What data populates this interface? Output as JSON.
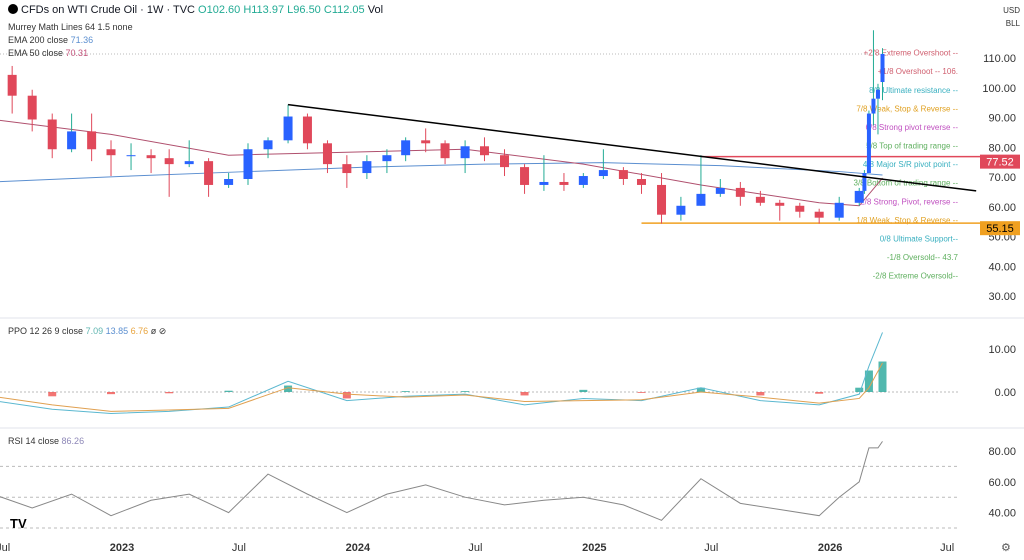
{
  "header": {
    "symbol_title": "CFDs on WTI Crude Oil · 1W · TVC",
    "ohlc": {
      "o": "O102.60",
      "h": "H113.97",
      "l": "L96.50",
      "c": "C112.05"
    },
    "vol": "Vol",
    "currency": "USD",
    "unit": "BLL"
  },
  "legend": {
    "murrey": "Murrey Math Lines 64 1.5 none",
    "ema200_label": "EMA 200 close",
    "ema200_value": "71.36",
    "ema50_label": "EMA 50 close",
    "ema50_value": "70.31",
    "ppo_label": "PPO 12 26 9 close",
    "ppo_values": [
      "7.09",
      "13.85",
      "6.76"
    ],
    "rsi_label": "RSI 14 close",
    "rsi_value": "86.26"
  },
  "colors": {
    "up": "#2962ff",
    "down": "#e0485a",
    "ema200": "#5b8fd0",
    "ema50": "#b0506e",
    "trendline": "#000000",
    "resistance": "#e0485a",
    "support": "#f0a020"
  },
  "chart_data": [
    {
      "type": "candlestick",
      "title": "CFDs on WTI Crude Oil",
      "ylim": [
        25,
        122
      ],
      "yticks": [
        "30.00",
        "40.00",
        "50.00",
        "60.00",
        "70.00",
        "80.00",
        "90.00",
        "100.00",
        "110.00"
      ],
      "xticks": [
        "Jul",
        "2023",
        "Jul",
        "2024",
        "Jul",
        "2025",
        "Jul",
        "2026",
        "Jul"
      ],
      "ohlc": [
        [
          "2022-06",
          110,
          114,
          100,
          105
        ],
        [
          "2022-07",
          105,
          108,
          92,
          98
        ],
        [
          "2022-08",
          98,
          100,
          86,
          90
        ],
        [
          "2022-09",
          90,
          92,
          77,
          80
        ],
        [
          "2022-10",
          80,
          92,
          79,
          86
        ],
        [
          "2022-11",
          86,
          92,
          76,
          80
        ],
        [
          "2022-12",
          80,
          83,
          71,
          78
        ],
        [
          "2023-01",
          78,
          82,
          73,
          78
        ],
        [
          "2023-02",
          78,
          80,
          72,
          77
        ],
        [
          "2023-03",
          77,
          80,
          64,
          75
        ],
        [
          "2023-04",
          75,
          83,
          74,
          76
        ],
        [
          "2023-05",
          76,
          77,
          64,
          68
        ],
        [
          "2023-06",
          68,
          72,
          67,
          70
        ],
        [
          "2023-07",
          70,
          82,
          68,
          80
        ],
        [
          "2023-08",
          80,
          84,
          77,
          83
        ],
        [
          "2023-09",
          83,
          95,
          82,
          91
        ],
        [
          "2023-10",
          91,
          92,
          80,
          82
        ],
        [
          "2023-11",
          82,
          83,
          72,
          75
        ],
        [
          "2023-12",
          75,
          78,
          67,
          72
        ],
        [
          "2024-01",
          72,
          78,
          70,
          76
        ],
        [
          "2024-02",
          76,
          80,
          72,
          78
        ],
        [
          "2024-03",
          78,
          84,
          76,
          83
        ],
        [
          "2024-04",
          83,
          87,
          79,
          82
        ],
        [
          "2024-05",
          82,
          83,
          75,
          77
        ],
        [
          "2024-06",
          77,
          83,
          72,
          81
        ],
        [
          "2024-07",
          81,
          84,
          76,
          78
        ],
        [
          "2024-08",
          78,
          80,
          71,
          74
        ],
        [
          "2024-09",
          74,
          75,
          65,
          68
        ],
        [
          "2024-10",
          68,
          78,
          66,
          69
        ],
        [
          "2024-11",
          69,
          72,
          66,
          68
        ],
        [
          "2024-12",
          68,
          72,
          67,
          71
        ],
        [
          "2025-01",
          71,
          80,
          70,
          73
        ],
        [
          "2025-02",
          73,
          74,
          68,
          70
        ],
        [
          "2025-03",
          70,
          72,
          65,
          68
        ],
        [
          "2025-04",
          68,
          72,
          55,
          58
        ],
        [
          "2025-05",
          58,
          64,
          56,
          61
        ],
        [
          "2025-06",
          61,
          78,
          61,
          65
        ],
        [
          "2025-07",
          65,
          70,
          64,
          67
        ],
        [
          "2025-08",
          67,
          69,
          61,
          64
        ],
        [
          "2025-09",
          64,
          66,
          61,
          62
        ],
        [
          "2025-10",
          62,
          63,
          56,
          61
        ],
        [
          "2025-11",
          61,
          62,
          57,
          59
        ],
        [
          "2025-12",
          59,
          60,
          55,
          57
        ],
        [
          "2026-01",
          57,
          64,
          56,
          62
        ],
        [
          "2026-02",
          62,
          67,
          61,
          66
        ],
        [
          "2026-02-23",
          66,
          73,
          65,
          72
        ],
        [
          "2026-03-02",
          72,
          93,
          72,
          92
        ],
        [
          "2026-03-09",
          92,
          120,
          88,
          97
        ],
        [
          "2026-03-16",
          97,
          102,
          85,
          100
        ],
        [
          "2026-03-23",
          102.6,
          113.97,
          96.5,
          112.05
        ]
      ],
      "ema200": [
        [
          "2022-06",
          69
        ],
        [
          "2023-01",
          71
        ],
        [
          "2023-07",
          72.5
        ],
        [
          "2024-01",
          74
        ],
        [
          "2024-07",
          75
        ],
        [
          "2025-01",
          75.5
        ],
        [
          "2025-07",
          74.5
        ],
        [
          "2026-01",
          72.5
        ],
        [
          "2026-03-23",
          71.36
        ]
      ],
      "ema50": [
        [
          "2022-06",
          90
        ],
        [
          "2022-12",
          85
        ],
        [
          "2023-06",
          78
        ],
        [
          "2023-12",
          79
        ],
        [
          "2024-06",
          80
        ],
        [
          "2024-12",
          75
        ],
        [
          "2025-06",
          68
        ],
        [
          "2025-12",
          62
        ],
        [
          "2026-02",
          61
        ],
        [
          "2026-03-23",
          70.31
        ]
      ],
      "trendline": [
        [
          "2023-09",
          95
        ],
        [
          "2026-08",
          66
        ]
      ],
      "horizontal_levels": [
        {
          "value": 77.52,
          "label": "77.52",
          "from": "2025-06"
        },
        {
          "value": 55.15,
          "label": "55.15",
          "from": "2025-03"
        }
      ],
      "murrey_levels": [
        {
          "value": 112.5,
          "label": "+2/8 Extreme Overshoot --",
          "color": "#d06070"
        },
        {
          "value": 106.25,
          "label": "+1/8 Overshoot --  106.",
          "color": "#d06070"
        },
        {
          "value": 100,
          "label": "8/8 Ultimate resistance --",
          "color": "#3ab0c0"
        },
        {
          "value": 93.75,
          "label": "7/8 Weak, Stop & Reverse --",
          "color": "#e0a020"
        },
        {
          "value": 87.5,
          "label": "6/8 Strong pivot reverse --",
          "color": "#c050c0"
        },
        {
          "value": 81.25,
          "label": "5/8 Top of trading range --",
          "color": "#60b060"
        },
        {
          "value": 75,
          "label": "4/8 Major S/R pivot point --",
          "color": "#3ab0c0"
        },
        {
          "value": 68.75,
          "label": "3/8 Bottom of trading range --",
          "color": "#60b060"
        },
        {
          "value": 62.5,
          "label": "2/8 Strong, Pivot, reverse --",
          "color": "#c050c0"
        },
        {
          "value": 56.25,
          "label": "1/8 Weak, Stop & Reverse --",
          "color": "#e0a020"
        },
        {
          "value": 50,
          "label": "0/8 Ultimate Support--",
          "color": "#3ab0c0"
        },
        {
          "value": 43.75,
          "label": "-1/8 Oversold--  43.7",
          "color": "#60b060"
        },
        {
          "value": 37.5,
          "label": "-2/8 Extreme Oversold--",
          "color": "#60b060"
        }
      ]
    },
    {
      "type": "bar+line",
      "title": "PPO 12 26 9 close",
      "ylim": [
        -6,
        16
      ],
      "yticks": [
        "0.00",
        "10.00"
      ],
      "ppo": [
        [
          "2022-06",
          -2
        ],
        [
          "2022-09",
          -4
        ],
        [
          "2022-12",
          -5
        ],
        [
          "2023-03",
          -4.5
        ],
        [
          "2023-06",
          -3.5
        ],
        [
          "2023-09",
          2.5
        ],
        [
          "2023-12",
          -2
        ],
        [
          "2024-03",
          -1
        ],
        [
          "2024-06",
          -0.5
        ],
        [
          "2024-09",
          -3
        ],
        [
          "2024-12",
          -1.5
        ],
        [
          "2025-03",
          -2
        ],
        [
          "2025-06",
          1
        ],
        [
          "2025-09",
          -2
        ],
        [
          "2025-12",
          -3
        ],
        [
          "2026-02",
          -0.5
        ],
        [
          "2026-03-02",
          6
        ],
        [
          "2026-03-23",
          13.85
        ]
      ],
      "signal": [
        [
          "2022-06",
          -1
        ],
        [
          "2022-09",
          -3
        ],
        [
          "2022-12",
          -4.5
        ],
        [
          "2023-03",
          -4.2
        ],
        [
          "2023-06",
          -3.8
        ],
        [
          "2023-09",
          1
        ],
        [
          "2023-12",
          -0.5
        ],
        [
          "2024-03",
          -1.2
        ],
        [
          "2024-06",
          -0.7
        ],
        [
          "2024-09",
          -2.2
        ],
        [
          "2024-12",
          -2
        ],
        [
          "2025-03",
          -1.8
        ],
        [
          "2025-06",
          0
        ],
        [
          "2025-09",
          -1.2
        ],
        [
          "2025-12",
          -2.6
        ],
        [
          "2026-02",
          -1.5
        ],
        [
          "2026-03-02",
          1
        ],
        [
          "2026-03-23",
          6.76
        ]
      ],
      "histogram_last": 7.09
    },
    {
      "type": "line",
      "title": "RSI 14 close",
      "ylim": [
        25,
        92
      ],
      "yticks": [
        "40.00",
        "60.00",
        "80.00"
      ],
      "bands": [
        30,
        50,
        70
      ],
      "rsi": [
        [
          "2022-06",
          52
        ],
        [
          "2022-08",
          43
        ],
        [
          "2022-10",
          52
        ],
        [
          "2022-12",
          38
        ],
        [
          "2023-02",
          48
        ],
        [
          "2023-04",
          52
        ],
        [
          "2023-06",
          40
        ],
        [
          "2023-08",
          65
        ],
        [
          "2023-10",
          52
        ],
        [
          "2023-12",
          40
        ],
        [
          "2024-02",
          52
        ],
        [
          "2024-04",
          58
        ],
        [
          "2024-06",
          50
        ],
        [
          "2024-08",
          45
        ],
        [
          "2024-10",
          48
        ],
        [
          "2024-12",
          50
        ],
        [
          "2025-02",
          45
        ],
        [
          "2025-04",
          35
        ],
        [
          "2025-06",
          62
        ],
        [
          "2025-08",
          46
        ],
        [
          "2025-10",
          42
        ],
        [
          "2025-12",
          38
        ],
        [
          "2026-01",
          50
        ],
        [
          "2026-02",
          60
        ],
        [
          "2026-03-02",
          82
        ],
        [
          "2026-03-16",
          82
        ],
        [
          "2026-03-23",
          86.26
        ]
      ]
    }
  ]
}
